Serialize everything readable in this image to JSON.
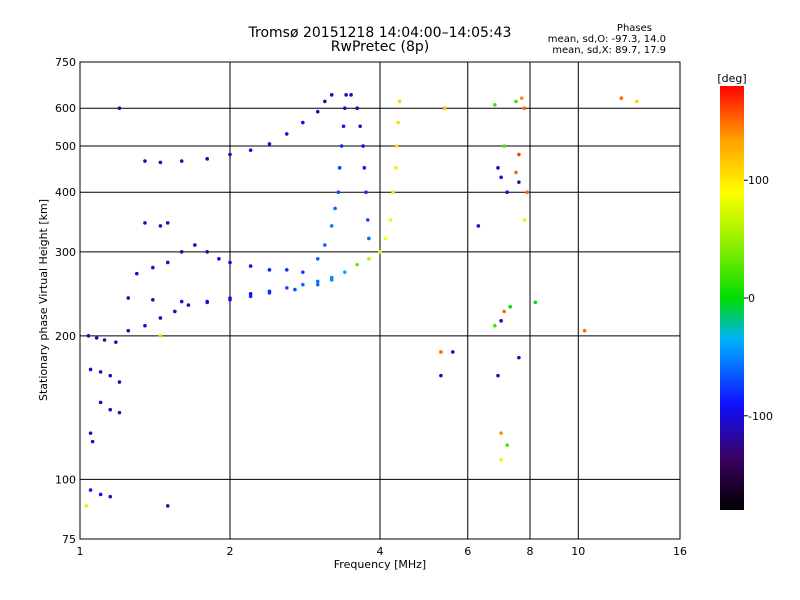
{
  "chart_data": {
    "type": "scatter",
    "title": "Tromsø 20151218 14:04:00–14:05:43",
    "subtitle": "RwPretec (8p)",
    "stats": {
      "heading": "Phases",
      "o_line": "mean, sd,O: -97.3, 14.0",
      "x_line": "mean, sd,X: 89.7, 17.9"
    },
    "xlabel": "Frequency [MHz]",
    "ylabel": "Stationary phase Virtual Height [km]",
    "x_scale": "log",
    "y_scale": "log",
    "xlim": [
      1,
      16
    ],
    "ylim": [
      75,
      750
    ],
    "x_ticks": [
      1,
      2,
      4,
      6,
      8,
      10,
      16
    ],
    "x_tick_labels": [
      "1",
      "2",
      "4",
      "6",
      "8",
      "10",
      "16"
    ],
    "y_ticks": [
      75,
      100,
      200,
      300,
      400,
      500,
      600,
      750
    ],
    "y_tick_labels": [
      "75",
      "100",
      "200",
      "300",
      "400",
      "500",
      "600",
      "750"
    ],
    "grid": true,
    "colorbar": {
      "label": "[deg]",
      "range": [
        -180,
        180
      ],
      "ticks": [
        -100,
        0,
        100
      ],
      "tick_labels": [
        "-100",
        "0",
        "100"
      ]
    },
    "series": [
      {
        "points": [
          [
            1.04,
            200,
            -115
          ],
          [
            1.08,
            198,
            -112
          ],
          [
            1.12,
            196,
            -110
          ],
          [
            1.18,
            194,
            -108
          ],
          [
            1.25,
            205,
            -110
          ],
          [
            1.35,
            210,
            -108
          ],
          [
            1.45,
            218,
            -110
          ],
          [
            1.55,
            225,
            -112
          ],
          [
            1.65,
            232,
            -110
          ],
          [
            1.8,
            235,
            -108
          ],
          [
            2.0,
            240,
            -100
          ],
          [
            2.2,
            245,
            -90
          ],
          [
            2.4,
            248,
            -80
          ],
          [
            2.6,
            252,
            -70
          ],
          [
            2.8,
            256,
            -60
          ],
          [
            3.0,
            260,
            -55
          ],
          [
            3.2,
            265,
            -50
          ],
          [
            3.4,
            272,
            -40
          ],
          [
            3.6,
            282,
            30
          ],
          [
            3.8,
            290,
            60
          ],
          [
            4.0,
            300,
            80
          ],
          [
            4.1,
            320,
            90
          ],
          [
            4.2,
            350,
            95
          ],
          [
            4.25,
            400,
            100
          ],
          [
            4.3,
            450,
            100
          ],
          [
            4.32,
            500,
            105
          ],
          [
            4.35,
            560,
            105
          ],
          [
            4.38,
            620,
            110
          ],
          [
            1.25,
            240,
            -110
          ],
          [
            1.4,
            238,
            -112
          ],
          [
            1.6,
            236,
            -110
          ],
          [
            1.8,
            236,
            -100
          ],
          [
            2.0,
            238,
            -95
          ],
          [
            2.2,
            242,
            -85
          ],
          [
            2.4,
            246,
            -80
          ],
          [
            2.7,
            250,
            -70
          ],
          [
            3.0,
            256,
            -60
          ],
          [
            3.2,
            262,
            -50
          ],
          [
            1.05,
            170,
            -105
          ],
          [
            1.1,
            168,
            -108
          ],
          [
            1.15,
            165,
            -110
          ],
          [
            1.2,
            160,
            -110
          ],
          [
            1.1,
            145,
            -112
          ],
          [
            1.15,
            140,
            -110
          ],
          [
            1.2,
            138,
            -108
          ],
          [
            1.05,
            125,
            -112
          ],
          [
            1.06,
            120,
            -110
          ],
          [
            1.05,
            95,
            -90
          ],
          [
            1.1,
            93,
            -100
          ],
          [
            1.15,
            92,
            -110
          ],
          [
            1.3,
            270,
            -105
          ],
          [
            1.4,
            278,
            -100
          ],
          [
            1.5,
            285,
            -108
          ],
          [
            1.6,
            300,
            -110
          ],
          [
            1.7,
            310,
            -112
          ],
          [
            1.8,
            300,
            -110
          ],
          [
            1.9,
            290,
            -100
          ],
          [
            2.0,
            285,
            -95
          ],
          [
            2.2,
            280,
            -90
          ],
          [
            2.4,
            275,
            -85
          ],
          [
            2.6,
            275,
            -80
          ],
          [
            2.8,
            272,
            -75
          ],
          [
            3.0,
            290,
            -65
          ],
          [
            3.1,
            310,
            -60
          ],
          [
            3.2,
            340,
            -55
          ],
          [
            3.25,
            370,
            -60
          ],
          [
            3.3,
            400,
            -70
          ],
          [
            3.32,
            450,
            -75
          ],
          [
            3.35,
            500,
            -80
          ],
          [
            3.38,
            550,
            -90
          ],
          [
            3.4,
            600,
            -100
          ],
          [
            3.42,
            640,
            -110
          ],
          [
            1.35,
            465,
            -110
          ],
          [
            1.45,
            462,
            -112
          ],
          [
            1.6,
            465,
            -110
          ],
          [
            1.8,
            470,
            -112
          ],
          [
            2.0,
            480,
            -108
          ],
          [
            2.2,
            490,
            -105
          ],
          [
            2.4,
            505,
            -100
          ],
          [
            2.6,
            530,
            -100
          ],
          [
            2.8,
            560,
            -105
          ],
          [
            3.0,
            590,
            -110
          ],
          [
            3.1,
            620,
            -112
          ],
          [
            3.2,
            640,
            -110
          ],
          [
            3.5,
            640,
            -115
          ],
          [
            3.6,
            600,
            -110
          ],
          [
            3.65,
            550,
            -108
          ],
          [
            3.7,
            500,
            -100
          ],
          [
            3.72,
            450,
            -90
          ],
          [
            3.75,
            400,
            -80
          ],
          [
            3.78,
            350,
            -70
          ],
          [
            3.8,
            320,
            -60
          ],
          [
            1.5,
            345,
            -110
          ],
          [
            1.45,
            340,
            -108
          ],
          [
            1.35,
            345,
            -105
          ],
          [
            1.2,
            600,
            -110
          ],
          [
            1.5,
            88,
            -112
          ],
          [
            1.03,
            88,
            100
          ],
          [
            1.45,
            200,
            110
          ],
          [
            5.4,
            600,
            120
          ],
          [
            5.3,
            185,
            150
          ],
          [
            5.6,
            185,
            -100
          ],
          [
            5.3,
            165,
            -110
          ],
          [
            6.3,
            340,
            -110
          ],
          [
            6.8,
            610,
            20
          ],
          [
            6.9,
            450,
            -110
          ],
          [
            7.0,
            430,
            -100
          ],
          [
            7.0,
            125,
            140
          ],
          [
            7.0,
            110,
            100
          ],
          [
            7.2,
            118,
            20
          ],
          [
            7.1,
            225,
            150
          ],
          [
            7.3,
            230,
            0
          ],
          [
            7.1,
            500,
            20
          ],
          [
            7.2,
            400,
            -100
          ],
          [
            7.5,
            620,
            20
          ],
          [
            7.6,
            480,
            160
          ],
          [
            7.5,
            440,
            150
          ],
          [
            7.6,
            420,
            -110
          ],
          [
            7.6,
            180,
            -110
          ],
          [
            6.9,
            165,
            -110
          ],
          [
            6.8,
            210,
            20
          ],
          [
            7.0,
            215,
            -110
          ],
          [
            7.7,
            630,
            140
          ],
          [
            7.8,
            600,
            150
          ],
          [
            7.9,
            400,
            150
          ],
          [
            7.8,
            350,
            100
          ],
          [
            8.2,
            235,
            0
          ],
          [
            10.3,
            205,
            150
          ],
          [
            12.2,
            630,
            150
          ],
          [
            13.1,
            620,
            110
          ]
        ]
      }
    ]
  }
}
